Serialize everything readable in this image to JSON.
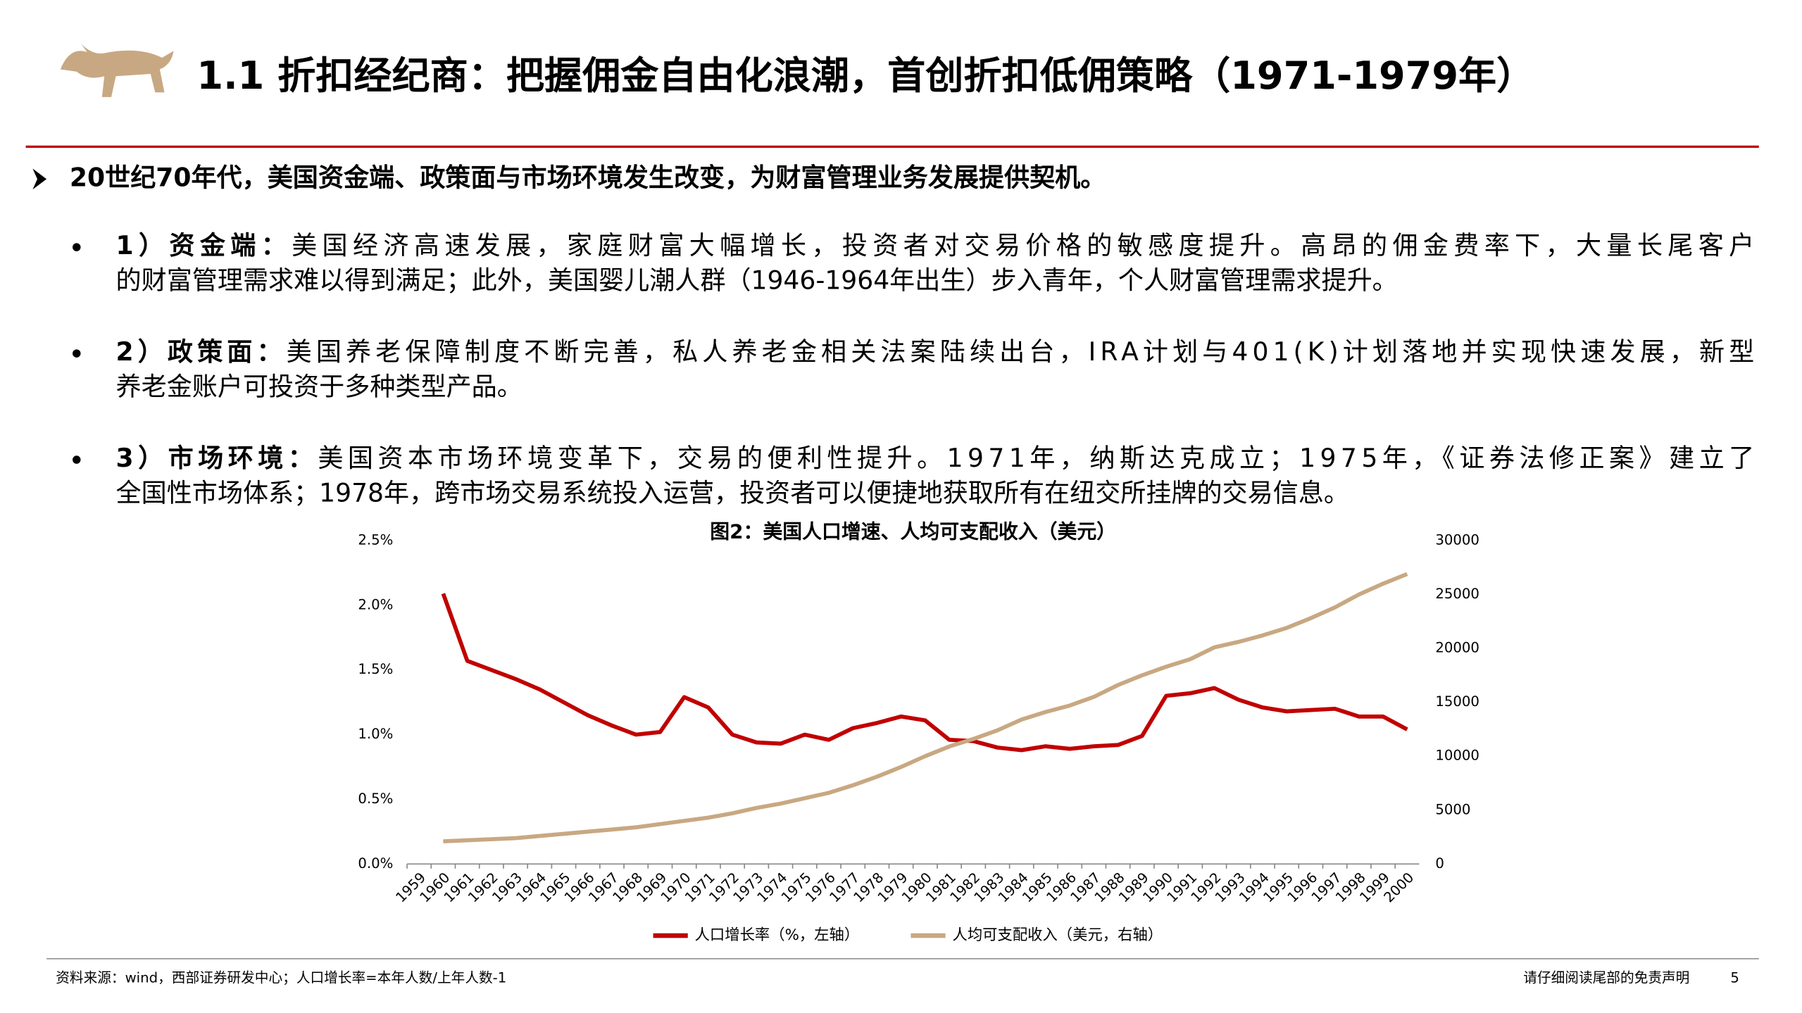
{
  "header": {
    "title": "1.1 折扣经纪商：把握佣金自由化浪潮，首创折扣低佣策略（1971-1979年）"
  },
  "intro": "20世纪70年代，美国资金端、政策面与市场环境发生改变，为财富管理业务发展提供契机。",
  "bullets": [
    {
      "label": "1）资金端：",
      "lines": [
        "美国经济高速发展，家庭财富大幅增长，投资者对交易价格的敏感度提升。高昂的佣金费率下，大量长尾客户",
        "的财富管理需求难以得到满足；此外，美国婴儿潮人群（1946-1964年出生）步入青年，个人财富管理需求提升。"
      ]
    },
    {
      "label": "2）政策面：",
      "lines": [
        "美国养老保障制度不断完善，私人养老金相关法案陆续出台，IRA计划与401(K)计划落地并实现快速发展，新型",
        "养老金账户可投资于多种类型产品。"
      ]
    },
    {
      "label": "3）市场环境：",
      "lines": [
        "美国资本市场环境变革下，交易的便利性提升。1971年，纳斯达克成立；1975年，《证券法修正案》建立了",
        "全国性市场体系；1978年，跨市场交易系统投入运营，投资者可以便捷地获取所有在纽交所挂牌的交易信息。"
      ]
    }
  ],
  "chart_data": {
    "type": "line",
    "title": "图2：美国人口增速、人均可支配收入（美元）",
    "categories": [
      "1959",
      "1960",
      "1961",
      "1962",
      "1963",
      "1964",
      "1965",
      "1966",
      "1967",
      "1968",
      "1969",
      "1970",
      "1971",
      "1972",
      "1973",
      "1974",
      "1975",
      "1976",
      "1977",
      "1978",
      "1979",
      "1980",
      "1981",
      "1982",
      "1983",
      "1984",
      "1985",
      "1986",
      "1987",
      "1988",
      "1989",
      "1990",
      "1991",
      "1992",
      "1993",
      "1994",
      "1995",
      "1996",
      "1997",
      "1998",
      "1999",
      "2000"
    ],
    "series": [
      {
        "name": "人口增长率（%，左轴）",
        "color": "#c00000",
        "values": [
          null,
          2.09,
          1.57,
          1.5,
          1.43,
          1.35,
          1.25,
          1.15,
          1.07,
          1.0,
          1.02,
          1.29,
          1.21,
          1.0,
          0.94,
          0.93,
          1.0,
          0.96,
          1.05,
          1.09,
          1.14,
          1.11,
          0.96,
          0.95,
          0.9,
          0.88,
          0.91,
          0.89,
          0.91,
          0.92,
          0.99,
          1.3,
          1.32,
          1.36,
          1.27,
          1.21,
          1.18,
          1.19,
          1.2,
          1.14,
          1.14,
          1.04
        ]
      },
      {
        "name": "人均可支配收入（美元，右轴）",
        "color": "#c8a882",
        "axis": "y2",
        "values": [
          null,
          2100,
          2200,
          2300,
          2400,
          2600,
          2800,
          3000,
          3200,
          3400,
          3700,
          4000,
          4300,
          4700,
          5200,
          5600,
          6100,
          6600,
          7300,
          8100,
          9000,
          10000,
          10900,
          11600,
          12400,
          13400,
          14100,
          14700,
          15500,
          16600,
          17500,
          18300,
          19000,
          20100,
          20600,
          21200,
          21900,
          22800,
          23800,
          25000,
          26000,
          26900
        ]
      }
    ],
    "ylim": [
      0,
      2.5
    ],
    "yticks": [
      {
        "value": 0,
        "label": "0.0%"
      },
      {
        "value": 0.5,
        "label": "0.5%"
      },
      {
        "value": 1,
        "label": "1.0%"
      },
      {
        "value": 1.5,
        "label": "1.5%"
      },
      {
        "value": 2,
        "label": "2.0%"
      },
      {
        "value": 2.5,
        "label": "2.5%"
      }
    ],
    "y2lim": [
      0,
      30000
    ],
    "y2ticks": [
      0,
      5000,
      10000,
      15000,
      20000,
      25000,
      30000
    ],
    "legend": "bottom"
  },
  "footer": {
    "source": "资料来源：wind，西部证券研发中心；人口增长率=本年人数/上年人数-1",
    "disclaimer": "请仔细阅读尾部的免责声明",
    "page": "5"
  }
}
